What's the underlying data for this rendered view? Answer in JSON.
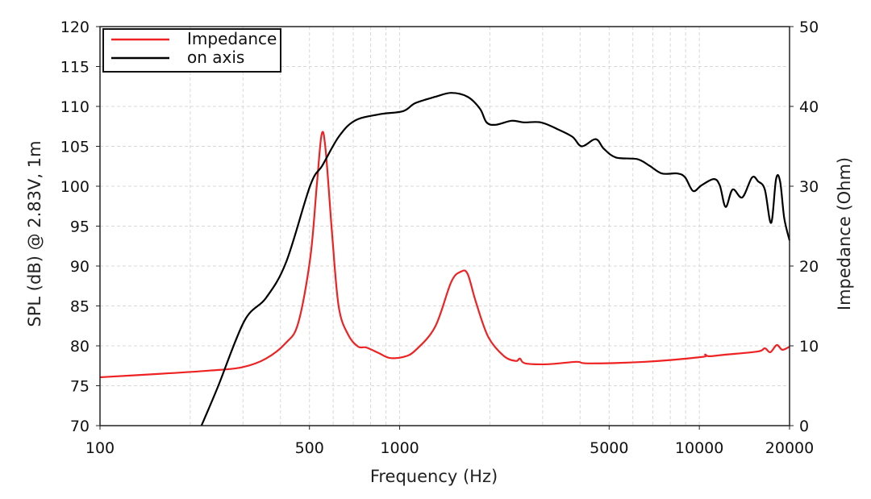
{
  "chart_data": {
    "type": "line",
    "title": "",
    "xlabel": "Frequency (Hz)",
    "ylabel": "SPL (dB) @ 2.83V, 1m",
    "y2label": "Impedance (Ohm)",
    "xscale": "log",
    "xlim": [
      100,
      20000
    ],
    "ylim": [
      70,
      120
    ],
    "y2lim": [
      0,
      50
    ],
    "grid": true,
    "legend_position": "top-left",
    "xticks": [
      100,
      500,
      1000,
      5000,
      10000,
      20000
    ],
    "xtick_labels": [
      "100",
      "500",
      "1000",
      "5000",
      "10000",
      "20000"
    ],
    "yticks": [
      70,
      75,
      80,
      85,
      90,
      95,
      100,
      105,
      110,
      115,
      120
    ],
    "ytick_labels": [
      "70",
      "75",
      "80",
      "85",
      "90",
      "95",
      "100",
      "105",
      "110",
      "115",
      "120"
    ],
    "y2ticks": [
      0,
      10,
      20,
      30,
      40,
      50
    ],
    "y2tick_labels": [
      "0",
      "10",
      "20",
      "30",
      "40",
      "50"
    ],
    "series": [
      {
        "name": "Impedance",
        "axis": "right",
        "color": "#ee2222",
        "x": [
          100,
          160,
          232,
          297,
          358,
          418,
          459,
          503,
          529,
          549,
          566,
          595,
          626,
          673,
          727,
          773,
          851,
          923,
          1026,
          1126,
          1314,
          1486,
          1603,
          1686,
          1796,
          1976,
          2232,
          2444,
          2519,
          2626,
          3133,
          3890,
          4260,
          6610,
          10160,
          10460,
          10770,
          12240,
          15720,
          16540,
          17250,
          18130,
          18920,
          20000
        ],
        "y": [
          6.06,
          6.5,
          6.9,
          7.3,
          8.4,
          10.4,
          12.9,
          21,
          30.1,
          36.5,
          34.6,
          24,
          14.9,
          11.4,
          9.9,
          9.8,
          9.1,
          8.5,
          8.6,
          9.4,
          12.4,
          18,
          19.3,
          19,
          15.5,
          11.1,
          8.7,
          8.1,
          8.4,
          7.8,
          7.7,
          8.0,
          7.8,
          8.0,
          8.6,
          8.9,
          8.7,
          8.9,
          9.3,
          9.7,
          9.2,
          10.1,
          9.5,
          9.9
        ]
      },
      {
        "name": "on axis",
        "axis": "left",
        "color": "#000000",
        "x": [
          218,
          247,
          303,
          358,
          418,
          503,
          552,
          626,
          708,
          851,
          1026,
          1126,
          1314,
          1486,
          1686,
          1854,
          1950,
          2090,
          2365,
          2596,
          2955,
          3340,
          3770,
          4050,
          4510,
          4800,
          5270,
          6200,
          6800,
          7500,
          8450,
          8970,
          9530,
          10160,
          11160,
          11700,
          12240,
          12920,
          13910,
          14990,
          15720,
          16540,
          17360,
          18030,
          18600,
          19200,
          20000
        ],
        "y": [
          70,
          74.8,
          83.1,
          86,
          90.5,
          100.1,
          102.6,
          106.2,
          108.2,
          109,
          109.4,
          110.4,
          111.2,
          111.7,
          111.2,
          109.7,
          108,
          107.7,
          108.2,
          108,
          108,
          107.2,
          106.2,
          105,
          105.9,
          104.7,
          103.6,
          103.4,
          102.6,
          101.6,
          101.6,
          101.1,
          99.4,
          100.1,
          100.9,
          100.1,
          97.4,
          99.6,
          98.6,
          101.1,
          100.6,
          99.6,
          95.4,
          100.9,
          100.6,
          96,
          93.2
        ]
      }
    ]
  }
}
